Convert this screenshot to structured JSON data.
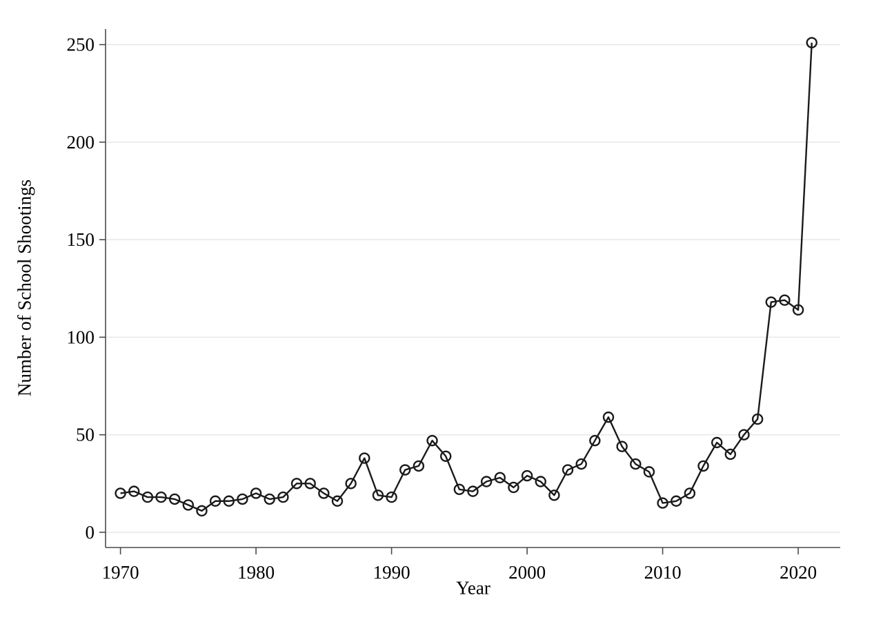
{
  "figure": {
    "background_color": "#ffffff",
    "text_color": "#000000"
  },
  "chart_data": {
    "type": "line",
    "xlabel": "Year",
    "ylabel": "Number of School Shootings",
    "x": [
      1970,
      1971,
      1972,
      1973,
      1974,
      1975,
      1976,
      1977,
      1978,
      1979,
      1980,
      1981,
      1982,
      1983,
      1984,
      1985,
      1986,
      1987,
      1988,
      1989,
      1990,
      1991,
      1992,
      1993,
      1994,
      1995,
      1996,
      1997,
      1998,
      1999,
      2000,
      2001,
      2002,
      2003,
      2004,
      2005,
      2006,
      2007,
      2008,
      2009,
      2010,
      2011,
      2012,
      2013,
      2014,
      2015,
      2016,
      2017,
      2018,
      2019,
      2020,
      2021
    ],
    "values": [
      20,
      21,
      18,
      18,
      17,
      14,
      11,
      16,
      16,
      17,
      20,
      17,
      18,
      25,
      25,
      20,
      16,
      25,
      38,
      19,
      18,
      32,
      34,
      47,
      39,
      22,
      21,
      26,
      28,
      23,
      29,
      26,
      19,
      32,
      35,
      47,
      59,
      44,
      35,
      31,
      15,
      16,
      20,
      34,
      46,
      40,
      50,
      58,
      118,
      119,
      114,
      251
    ],
    "xticks": [
      1970,
      1980,
      1990,
      2000,
      2010,
      2020
    ],
    "yticks": [
      0,
      50,
      100,
      150,
      200,
      250
    ],
    "xlim": [
      1968.9,
      2023.1
    ],
    "ylim": [
      -7.8,
      258
    ],
    "grid": "horizontal-only",
    "legend": "none",
    "marker": "open-circle",
    "line_color": "#1a1a1a",
    "marker_color": "#1a1a1a",
    "axis_color": "#4a4a4a",
    "grid_color": "#e7e7e7"
  }
}
